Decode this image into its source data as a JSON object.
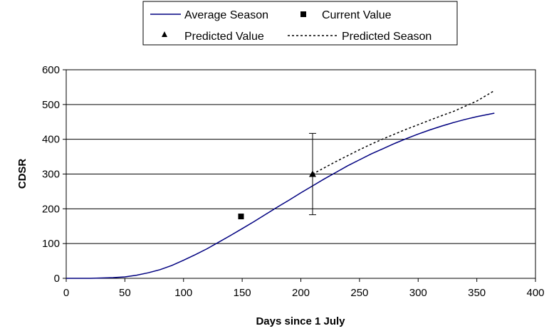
{
  "chart_data": {
    "type": "line",
    "xlabel": "Days since 1 July",
    "ylabel": "CDSR",
    "xlim": [
      0,
      400
    ],
    "ylim": [
      0,
      600
    ],
    "x_ticks": [
      0,
      50,
      100,
      150,
      200,
      250,
      300,
      350,
      400
    ],
    "y_ticks": [
      0,
      100,
      200,
      300,
      400,
      500,
      600
    ],
    "grid": "horizontal",
    "legend_position": "top",
    "series": [
      {
        "name": "Average Season",
        "style": "line",
        "color": "#000080",
        "x": [
          0,
          20,
          40,
          50,
          60,
          70,
          80,
          90,
          100,
          110,
          120,
          130,
          140,
          150,
          160,
          170,
          180,
          190,
          200,
          210,
          220,
          230,
          240,
          250,
          260,
          270,
          280,
          290,
          300,
          310,
          320,
          330,
          340,
          350,
          365
        ],
        "y": [
          0,
          0,
          2,
          4,
          9,
          16,
          25,
          37,
          52,
          68,
          85,
          104,
          123,
          143,
          163,
          184,
          205,
          225,
          246,
          266,
          286,
          305,
          324,
          341,
          358,
          373,
          388,
          402,
          415,
          427,
          438,
          448,
          457,
          465,
          475
        ]
      },
      {
        "name": "Current Value",
        "style": "square-marker",
        "color": "#000000",
        "x": [
          149
        ],
        "y": [
          178
        ]
      },
      {
        "name": "Predicted Value",
        "style": "triangle-marker",
        "color": "#000000",
        "x": [
          210
        ],
        "y": [
          300
        ],
        "error": {
          "low": 183,
          "high": 417
        }
      },
      {
        "name": "Predicted Season",
        "style": "dotted-line",
        "color": "#000000",
        "x": [
          210,
          220,
          230,
          240,
          250,
          260,
          270,
          280,
          290,
          300,
          310,
          320,
          330,
          340,
          350,
          365
        ],
        "y": [
          300,
          318,
          336,
          353,
          370,
          386,
          401,
          415,
          429,
          442,
          455,
          468,
          480,
          495,
          510,
          540
        ]
      }
    ]
  }
}
